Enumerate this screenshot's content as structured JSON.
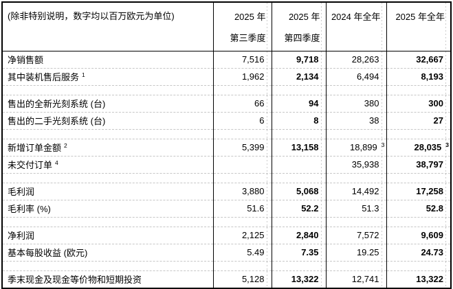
{
  "unit_note": "(除非特别说明，数字均以百万欧元为单位)",
  "colors": {
    "text": "#000000",
    "border": "#000000",
    "gridline": "#c6c6c6",
    "background": "#ffffff"
  },
  "columns": [
    {
      "label_line1": "2025 年",
      "label_line2": "第三季度",
      "bold": false
    },
    {
      "label_line1": "2025 年",
      "label_line2": "第四季度",
      "bold": true
    },
    {
      "label_line1": "2024 年全年",
      "label_line2": "",
      "bold": false
    },
    {
      "label_line1": "2025 年全年",
      "label_line2": "",
      "bold": true
    }
  ],
  "rows": [
    {
      "type": "data",
      "label": "净销售额",
      "label_sup": "",
      "values": [
        "7,516",
        "9,718",
        "28,263",
        "32,667"
      ],
      "value_sups": [
        "",
        "",
        "",
        ""
      ]
    },
    {
      "type": "data",
      "label": "其中装机售后服务",
      "label_sup": "1",
      "values": [
        "1,962",
        "2,134",
        "6,494",
        "8,193"
      ],
      "value_sups": [
        "",
        "",
        "",
        ""
      ]
    },
    {
      "type": "spacer"
    },
    {
      "type": "data",
      "label": "售出的全新光刻系统 (台)",
      "label_sup": "",
      "values": [
        "66",
        "94",
        "380",
        "300"
      ],
      "value_sups": [
        "",
        "",
        "",
        ""
      ]
    },
    {
      "type": "data",
      "label": "售出的二手光刻系统 (台)",
      "label_sup": "",
      "values": [
        "6",
        "8",
        "38",
        "27"
      ],
      "value_sups": [
        "",
        "",
        "",
        ""
      ]
    },
    {
      "type": "spacer"
    },
    {
      "type": "data",
      "label": "新增订单金额",
      "label_sup": "2",
      "values": [
        "5,399",
        "13,158",
        "18,899",
        "28,035"
      ],
      "value_sups": [
        "",
        "",
        "3",
        "3"
      ]
    },
    {
      "type": "data",
      "label": "未交付订单",
      "label_sup": "4",
      "values": [
        "",
        "",
        "35,938",
        "38,797"
      ],
      "value_sups": [
        "",
        "",
        "",
        ""
      ]
    },
    {
      "type": "spacer"
    },
    {
      "type": "data",
      "label": "毛利润",
      "label_sup": "",
      "values": [
        "3,880",
        "5,068",
        "14,492",
        "17,258"
      ],
      "value_sups": [
        "",
        "",
        "",
        ""
      ]
    },
    {
      "type": "data",
      "label": "毛利率 (%)",
      "label_sup": "",
      "values": [
        "51.6",
        "52.2",
        "51.3",
        "52.8"
      ],
      "value_sups": [
        "",
        "",
        "",
        ""
      ]
    },
    {
      "type": "spacer"
    },
    {
      "type": "data",
      "label": "净利润",
      "label_sup": "",
      "values": [
        "2,125",
        "2,840",
        "7,572",
        "9,609"
      ],
      "value_sups": [
        "",
        "",
        "",
        ""
      ]
    },
    {
      "type": "data",
      "label": "基本每股收益 (欧元)",
      "label_sup": "",
      "values": [
        "5.49",
        "7.35",
        "19.25",
        "24.73"
      ],
      "value_sups": [
        "",
        "",
        "",
        ""
      ]
    },
    {
      "type": "spacer"
    },
    {
      "type": "data",
      "label": "季末现金及现金等价物和短期投资",
      "label_sup": "",
      "values": [
        "5,128",
        "13,322",
        "12,741",
        "13,322"
      ],
      "value_sups": [
        "",
        "",
        "",
        ""
      ]
    }
  ]
}
